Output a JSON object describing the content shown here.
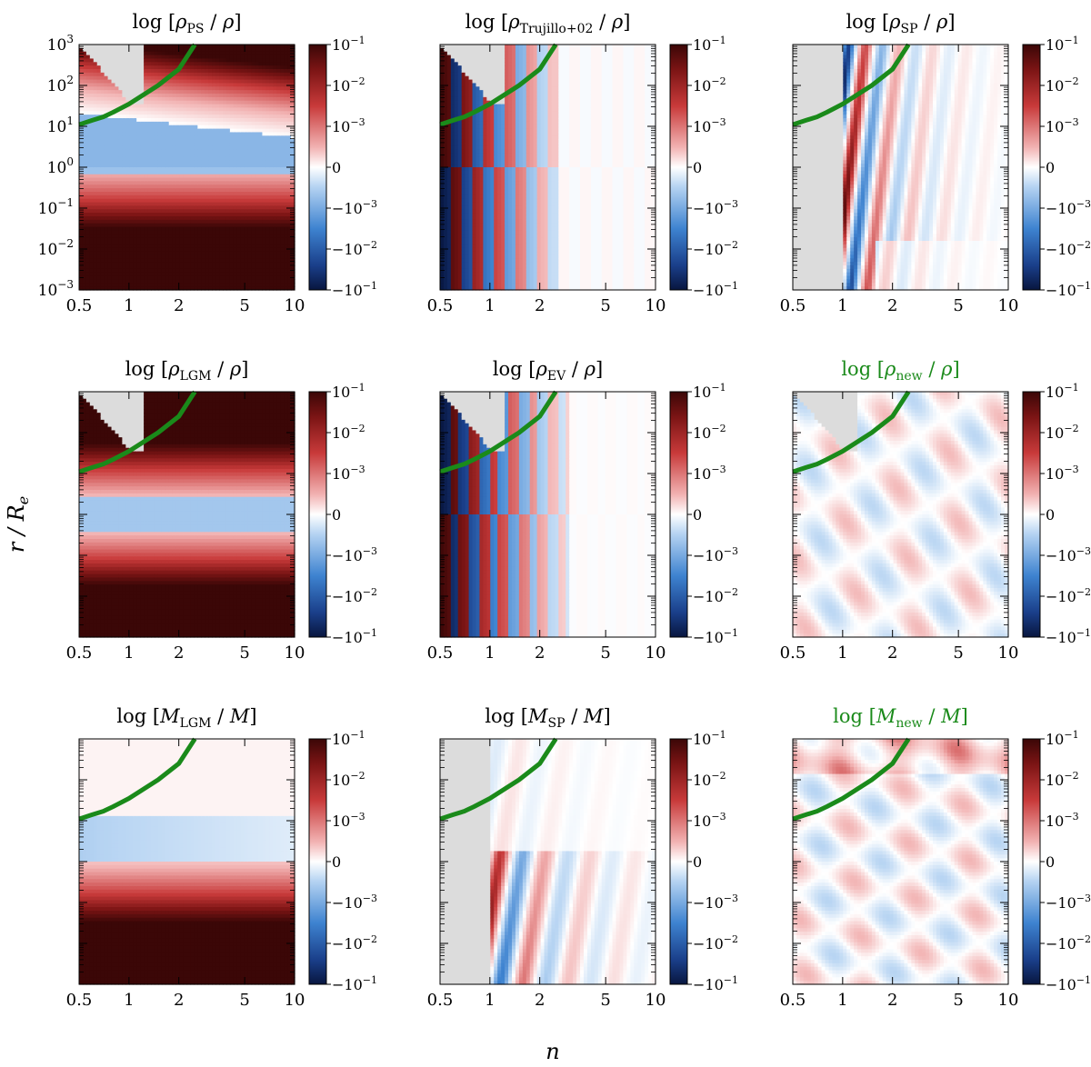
{
  "figure": {
    "ylabel": "r / R",
    "ylabel_sub": "e",
    "xlabel": "n"
  },
  "colors": {
    "accent_green": "#1a8a1a",
    "masked_gray": "#dcdcdc",
    "cmap_low": "#08163f",
    "cmap_mid": "#ffffff",
    "cmap_high": "#5c0a0a"
  },
  "chart_data": [
    {
      "type": "heatmap",
      "panel": "rho_PS",
      "title": {
        "prefix": "log",
        "var": "ρ",
        "sub": "PS",
        "den": "ρ",
        "brackets": "square",
        "green": false
      },
      "x_scale": "log",
      "xlim": [
        0.5,
        10
      ],
      "x_ticks": [
        "0.5",
        "1",
        "2",
        "5",
        "10"
      ],
      "y_scale": "log",
      "ylim": [
        0.001,
        1000
      ],
      "y_ticks": [
        "10−3",
        "10−2",
        "10−1",
        "100",
        "101",
        "102",
        "103"
      ],
      "colorbar": {
        "scale": "symlog",
        "ticks": [
          "10−1",
          "10−2",
          "10−3",
          "0",
          "−10−3",
          "−10−2",
          "−10−1"
        ]
      },
      "masked_region": "low-n, high-r",
      "green_curve": {
        "n": [
          0.5,
          0.6,
          0.7,
          0.8,
          1.0,
          1.5,
          2.0,
          2.5
        ],
        "r": [
          11,
          14,
          17,
          22,
          35,
          100,
          250,
          1000
        ]
      }
    },
    {
      "type": "heatmap",
      "panel": "rho_Trujillo02",
      "title": {
        "prefix": "log",
        "var": "ρ",
        "sub": "Trujillo+02",
        "den": "ρ",
        "brackets": "square",
        "green": false
      },
      "x_scale": "log",
      "xlim": [
        0.5,
        10
      ],
      "x_ticks": [
        "0.5",
        "1",
        "2",
        "5",
        "10"
      ],
      "y_scale": "log",
      "ylim": [
        0.001,
        1000
      ],
      "colorbar": {
        "scale": "symlog",
        "ticks": [
          "10−1",
          "10−2",
          "10−3",
          "0",
          "−10−3",
          "−10−2",
          "−10−1"
        ]
      },
      "masked_region": "low-n, high-r",
      "green_curve": {
        "n": [
          0.5,
          0.6,
          0.7,
          0.8,
          1.0,
          1.5,
          2.0,
          2.5
        ],
        "r": [
          11,
          14,
          17,
          22,
          35,
          100,
          250,
          1000
        ]
      }
    },
    {
      "type": "heatmap",
      "panel": "rho_SP",
      "title": {
        "prefix": "log",
        "var": "ρ",
        "sub": "SP",
        "den": "ρ",
        "brackets": "square",
        "green": false
      },
      "x_scale": "log",
      "xlim": [
        0.5,
        10
      ],
      "x_ticks": [
        "0.5",
        "1",
        "2",
        "5",
        "10"
      ],
      "y_scale": "log",
      "ylim": [
        0.001,
        1000
      ],
      "colorbar": {
        "scale": "symlog",
        "ticks": [
          "10−1",
          "10−2",
          "10−3",
          "0",
          "−10−3",
          "−10−2",
          "−10−1"
        ]
      },
      "masked_region": "n < 1",
      "green_curve": {
        "n": [
          0.5,
          0.6,
          0.7,
          0.8,
          1.0,
          1.5,
          2.0,
          2.5
        ],
        "r": [
          11,
          14,
          17,
          22,
          35,
          100,
          250,
          1000
        ]
      }
    },
    {
      "type": "heatmap",
      "panel": "rho_LGM",
      "title": {
        "prefix": "log",
        "var": "ρ",
        "sub": "LGM",
        "den": "ρ",
        "brackets": "square",
        "green": false
      },
      "x_scale": "log",
      "xlim": [
        0.5,
        10
      ],
      "x_ticks": [
        "0.5",
        "1",
        "2",
        "5",
        "10"
      ],
      "y_scale": "log",
      "ylim": [
        0.001,
        1000
      ],
      "colorbar": {
        "scale": "symlog",
        "ticks": [
          "10−1",
          "10−2",
          "10−3",
          "0",
          "−10−3",
          "−10−2",
          "−10−1"
        ]
      },
      "masked_region": "low-n, high-r",
      "green_curve": {
        "n": [
          0.5,
          0.6,
          0.7,
          0.8,
          1.0,
          1.5,
          2.0,
          2.5
        ],
        "r": [
          11,
          14,
          17,
          22,
          35,
          100,
          250,
          1000
        ]
      }
    },
    {
      "type": "heatmap",
      "panel": "rho_EV",
      "title": {
        "prefix": "log",
        "var": "ρ",
        "sub": "EV",
        "den": "ρ",
        "brackets": "square",
        "green": false
      },
      "x_scale": "log",
      "xlim": [
        0.5,
        10
      ],
      "x_ticks": [
        "0.5",
        "1",
        "2",
        "5",
        "10"
      ],
      "y_scale": "log",
      "ylim": [
        0.001,
        1000
      ],
      "colorbar": {
        "scale": "symlog",
        "ticks": [
          "10−1",
          "10−2",
          "10−3",
          "0",
          "−10−3",
          "−10−2",
          "−10−1"
        ]
      },
      "masked_region": "low-n, high-r",
      "green_curve": {
        "n": [
          0.5,
          0.6,
          0.7,
          0.8,
          1.0,
          1.5,
          2.0,
          2.5
        ],
        "r": [
          11,
          14,
          17,
          22,
          35,
          100,
          250,
          1000
        ]
      }
    },
    {
      "type": "heatmap",
      "panel": "rho_new",
      "title": {
        "prefix": "log",
        "var": "ρ",
        "sub": "new",
        "den": "ρ",
        "brackets": "square",
        "green": true
      },
      "x_scale": "log",
      "xlim": [
        0.5,
        10
      ],
      "x_ticks": [
        "0.5",
        "1",
        "2",
        "5",
        "10"
      ],
      "y_scale": "log",
      "ylim": [
        0.001,
        1000
      ],
      "colorbar": {
        "scale": "symlog",
        "ticks": [
          "10−1",
          "10−2",
          "10−3",
          "0",
          "−10−3",
          "−10−2",
          "−10−1"
        ]
      },
      "masked_region": "low-n, high-r",
      "green_curve": {
        "n": [
          0.5,
          0.6,
          0.7,
          0.8,
          1.0,
          1.5,
          2.0,
          2.5
        ],
        "r": [
          11,
          14,
          17,
          22,
          35,
          100,
          250,
          1000
        ]
      }
    },
    {
      "type": "heatmap",
      "panel": "M_LGM",
      "title": {
        "prefix": "log",
        "var": "M",
        "sub": "LGM",
        "den": "M",
        "brackets": "square",
        "green": false
      },
      "x_scale": "log",
      "xlim": [
        0.5,
        10
      ],
      "x_ticks": [
        "0.5",
        "1",
        "2",
        "5",
        "10"
      ],
      "y_scale": "log",
      "ylim": [
        0.001,
        1000
      ],
      "colorbar": {
        "scale": "symlog",
        "ticks": [
          "10−1",
          "10−2",
          "10−3",
          "0",
          "−10−3",
          "−10−2",
          "−10−1"
        ]
      },
      "masked_region": "none",
      "green_curve": {
        "n": [
          0.5,
          0.6,
          0.7,
          0.8,
          1.0,
          1.5,
          2.0,
          2.5
        ],
        "r": [
          11,
          14,
          17,
          22,
          35,
          100,
          250,
          1000
        ]
      }
    },
    {
      "type": "heatmap",
      "panel": "M_SP",
      "title": {
        "prefix": "log",
        "var": "M",
        "sub": "SP",
        "den": "M",
        "brackets": "square",
        "green": false
      },
      "x_scale": "log",
      "xlim": [
        0.5,
        10
      ],
      "x_ticks": [
        "0.5",
        "1",
        "2",
        "5",
        "10"
      ],
      "y_scale": "log",
      "ylim": [
        0.001,
        1000
      ],
      "colorbar": {
        "scale": "symlog",
        "ticks": [
          "10−1",
          "10−2",
          "10−3",
          "0",
          "−10−3",
          "−10−2",
          "−10−1"
        ]
      },
      "masked_region": "n < 1",
      "green_curve": {
        "n": [
          0.5,
          0.6,
          0.7,
          0.8,
          1.0,
          1.5,
          2.0,
          2.5
        ],
        "r": [
          11,
          14,
          17,
          22,
          35,
          100,
          250,
          1000
        ]
      }
    },
    {
      "type": "heatmap",
      "panel": "M_new",
      "title": {
        "prefix": "log",
        "var": "M",
        "sub": "new",
        "den": "M",
        "brackets": "square",
        "green": true
      },
      "x_scale": "log",
      "xlim": [
        0.5,
        10
      ],
      "x_ticks": [
        "0.5",
        "1",
        "2",
        "5",
        "10"
      ],
      "y_scale": "log",
      "ylim": [
        0.001,
        1000
      ],
      "colorbar": {
        "scale": "symlog",
        "ticks": [
          "10−1",
          "10−2",
          "10−3",
          "0",
          "−10−3",
          "−10−2",
          "−10−1"
        ]
      },
      "masked_region": "none",
      "green_curve": {
        "n": [
          0.5,
          0.6,
          0.7,
          0.8,
          1.0,
          1.5,
          2.0,
          2.5
        ],
        "r": [
          11,
          14,
          17,
          22,
          35,
          100,
          250,
          1000
        ]
      }
    }
  ]
}
